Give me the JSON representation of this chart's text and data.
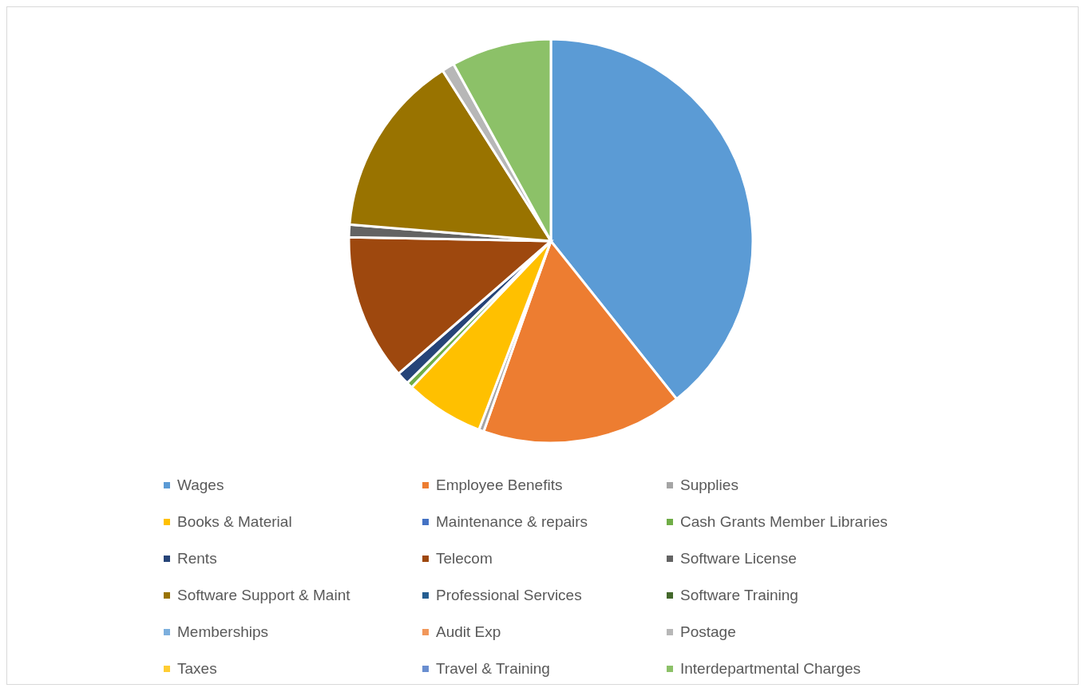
{
  "chart_data": {
    "type": "pie",
    "legend": "bottom",
    "categories": [
      "Wages",
      "Employee Benefits",
      "Supplies",
      "Books & Material",
      "Maintenance & repairs",
      "Cash Grants Member Libraries",
      "Rents",
      "Telecom",
      "Software License",
      "Software Support & Maint",
      "Professional Services",
      "Software Training",
      "Memberships",
      "Audit Exp",
      "Postage",
      "Taxes",
      "Travel & Training",
      "Interdepartmental Charges"
    ],
    "values": [
      39.3,
      16.1,
      0.4,
      6.3,
      null,
      0.5,
      1,
      11.7,
      1,
      14.7,
      0,
      0,
      0,
      0,
      1,
      0,
      0,
      8
    ],
    "colors": [
      "#5b9bd5",
      "#ed7d31",
      "#a5a5a5",
      "#ffc000",
      "#4472c4",
      "#70ad47",
      "#264478",
      "#9e480e",
      "#636363",
      "#997300",
      "#255e91",
      "#43682b",
      "#7cafdd",
      "#f1975a",
      "#b7b7b7",
      "#ffcd33",
      "#698ed0",
      "#8cc168"
    ]
  }
}
